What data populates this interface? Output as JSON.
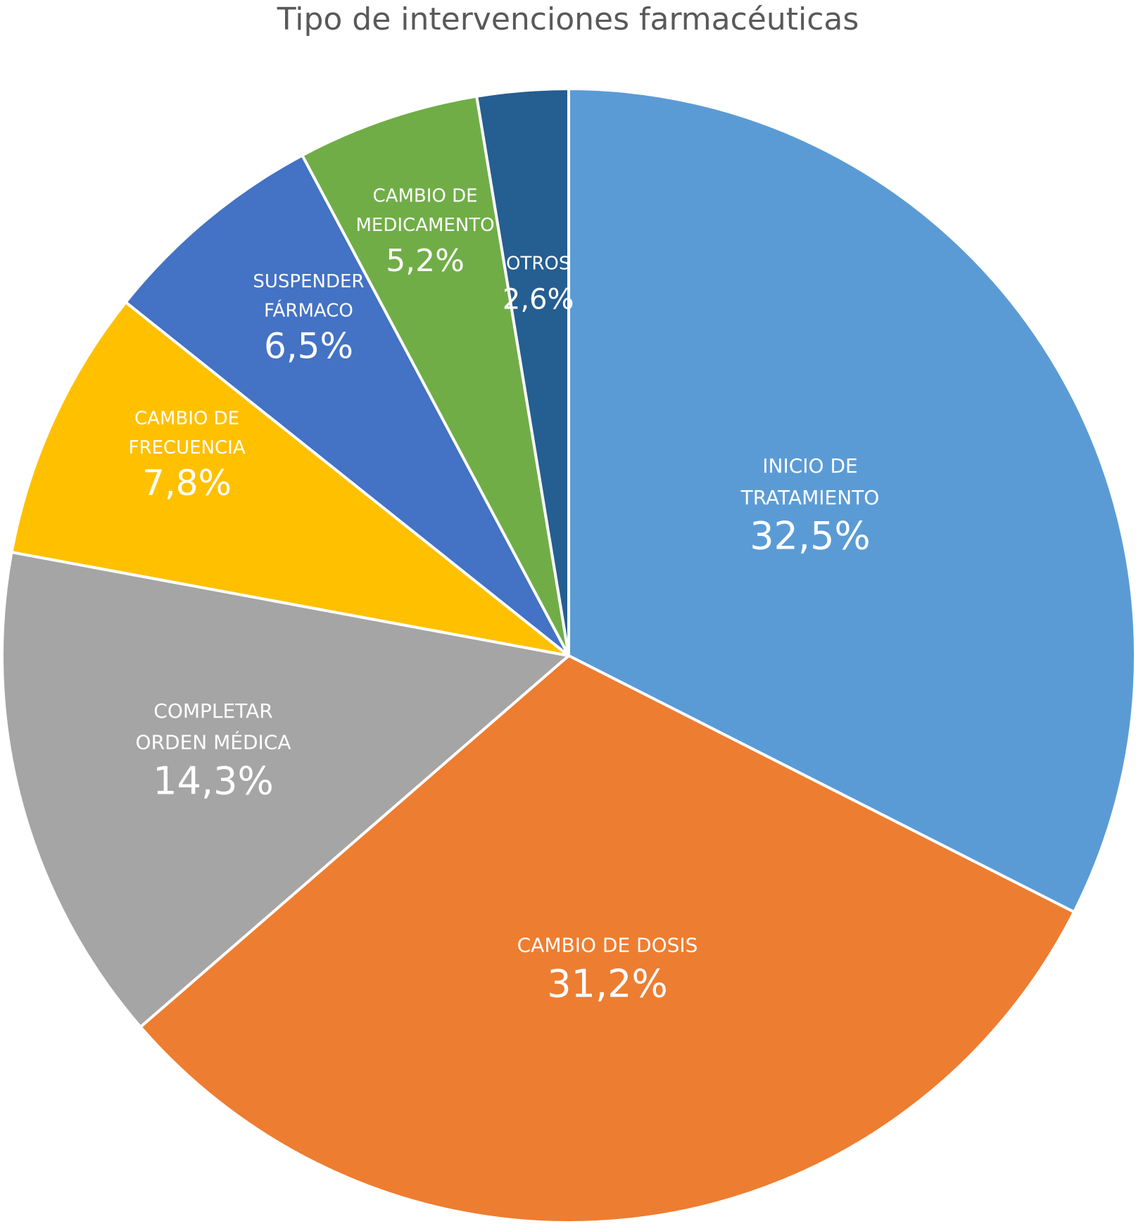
{
  "chart_data": {
    "type": "pie",
    "title": "Tipo de intervenciones farmacéuticas",
    "slices": [
      {
        "label_lines": [
          "INICIO DE",
          "TRATAMIENTO"
        ],
        "value_label": "32,5%",
        "value": 32.5,
        "color": "#5B9BD5"
      },
      {
        "label_lines": [
          "CAMBIO DE DOSIS"
        ],
        "value_label": "31,2%",
        "value": 31.2,
        "color": "#ED7D31"
      },
      {
        "label_lines": [
          "COMPLETAR",
          "ORDEN MÉDICA"
        ],
        "value_label": "14,3%",
        "value": 14.3,
        "color": "#A5A5A5"
      },
      {
        "label_lines": [
          "CAMBIO DE",
          "FRECUENCIA"
        ],
        "value_label": "7,8%",
        "value": 7.8,
        "color": "#FFC000"
      },
      {
        "label_lines": [
          "SUSPENDER",
          "FÁRMACO"
        ],
        "value_label": "6,5%",
        "value": 6.5,
        "color": "#4472C4"
      },
      {
        "label_lines": [
          "CAMBIO DE",
          "MEDICAMENTO"
        ],
        "value_label": "5,2%",
        "value": 5.2,
        "color": "#70AD47"
      },
      {
        "label_lines": [
          "OTROS"
        ],
        "value_label": "2,6%",
        "value": 2.6,
        "color": "#255E91"
      }
    ]
  }
}
